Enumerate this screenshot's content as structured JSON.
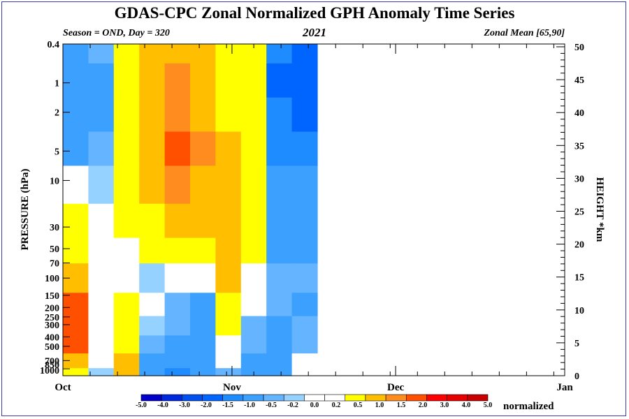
{
  "chart_data": {
    "type": "heatmap",
    "title": "GDAS-CPC Zonal Normalized GPH Anomaly Time Series",
    "subtitle_left": "Season = OND, Day = 320",
    "subtitle_center": "2021",
    "subtitle_right": "Zonal Mean [65,90]",
    "ylabel_left": "PRESSURE (hPa)",
    "ylabel_right": "HEIGHT *km",
    "colorbar_unit": "normalized",
    "y_scale": "log",
    "x_ticks": [
      "Oct",
      "Nov",
      "Dec",
      "Jan"
    ],
    "pressure_ticks": [
      "0.4",
      "1",
      "2",
      "5",
      "10",
      "30",
      "50",
      "70",
      "100",
      "150",
      "200",
      "250",
      "300",
      "400",
      "500",
      "700",
      "850",
      "1000"
    ],
    "height_ticks": [
      "0",
      "5",
      "10",
      "15",
      "20",
      "25",
      "30",
      "35",
      "40",
      "45",
      "50"
    ],
    "colorbar_levels": [
      "-5.0",
      "-4.0",
      "-3.0",
      "-2.0",
      "-1.5",
      "-1.0",
      "-0.5",
      "-0.2",
      "0.0",
      "0.2",
      "0.5",
      "1.0",
      "1.5",
      "2.0",
      "3.0",
      "4.0",
      "5.0"
    ],
    "colorbar_colors": [
      "#0000c8",
      "#0028dc",
      "#0050f0",
      "#0064ff",
      "#1e8cff",
      "#3ca0ff",
      "#64b4ff",
      "#96d2ff",
      "#ffffff",
      "#ffffff",
      "#ffff00",
      "#ffbe00",
      "#ff8c1e",
      "#ff5000",
      "#ff0000",
      "#e60000",
      "#c80000"
    ],
    "data_through_day": 320,
    "time_axis": [
      "Oct 1",
      "Oct 6",
      "Oct 11",
      "Oct 16",
      "Oct 21",
      "Oct 26",
      "Nov 1",
      "Nov 6",
      "Nov 11",
      "Nov 16"
    ],
    "levels_hPa": [
      0.4,
      1,
      2,
      5,
      10,
      30,
      50,
      100,
      200,
      300,
      500,
      700,
      1000
    ],
    "values": [
      [
        -0.6,
        -0.4,
        0.8,
        1.1,
        1.3,
        1.2,
        0.7,
        0.8,
        -1.5,
        -1.6
      ],
      [
        -0.8,
        -0.8,
        0.6,
        1.2,
        1.6,
        1.4,
        0.8,
        0.9,
        -1.6,
        -1.6
      ],
      [
        -0.8,
        -0.7,
        0.6,
        1.3,
        1.7,
        1.4,
        0.9,
        0.9,
        -1.5,
        -1.6
      ],
      [
        -0.7,
        -0.5,
        0.7,
        1.3,
        2.1,
        1.5,
        1.0,
        0.9,
        -1.4,
        -1.5
      ],
      [
        0.1,
        -0.1,
        0.8,
        1.2,
        1.6,
        1.3,
        1.2,
        0.8,
        -1.0,
        -1.0
      ],
      [
        0.7,
        0.4,
        0.7,
        0.8,
        1.2,
        1.0,
        1.3,
        0.9,
        -0.9,
        -0.9
      ],
      [
        0.7,
        0.3,
        0.4,
        0.5,
        0.7,
        0.6,
        1.1,
        0.7,
        -0.6,
        -0.8
      ],
      [
        1.1,
        0.2,
        0.1,
        -0.1,
        0.1,
        0.2,
        1.0,
        0.4,
        -0.4,
        -0.5
      ],
      [
        2.2,
        0.3,
        0.5,
        0.1,
        -0.3,
        -0.6,
        0.8,
        0.1,
        -0.5,
        -0.6
      ],
      [
        2.4,
        0.4,
        0.7,
        -0.2,
        -0.5,
        -0.7,
        0.5,
        -0.3,
        -0.6,
        -0.4
      ],
      [
        2.3,
        0.3,
        0.8,
        -0.4,
        -0.6,
        -0.6,
        0.3,
        -0.4,
        -0.7,
        -0.3
      ],
      [
        1.2,
        0.1,
        1.0,
        -0.6,
        -0.8,
        -0.7,
        0.0,
        -0.6,
        -0.8,
        0.2
      ],
      [
        0.7,
        -0.2,
        1.1,
        -0.7,
        -1.1,
        -0.9,
        -0.3,
        -0.8,
        -0.9,
        0.0
      ]
    ]
  }
}
